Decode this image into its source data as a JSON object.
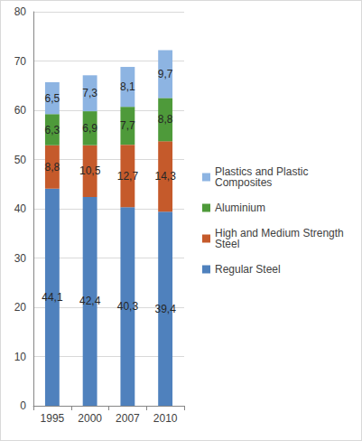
{
  "chart_data": {
    "type": "bar",
    "stacked": true,
    "data_labels": true,
    "grid": true,
    "legend": "right",
    "categories": [
      "1995",
      "2000",
      "2007",
      "2010"
    ],
    "ylim": [
      0,
      80
    ],
    "yticks": [
      0,
      10,
      20,
      30,
      40,
      50,
      60,
      70,
      80
    ],
    "series": [
      {
        "name": "Regular Steel",
        "color": "#4f81bd",
        "values": [
          44.1,
          42.4,
          40.3,
          39.4
        ],
        "value_labels": [
          "44,1",
          "42,4",
          "40,3",
          "39,4"
        ]
      },
      {
        "name": "High and Medium Strength Steel",
        "color": "#c55a2b",
        "values": [
          8.8,
          10.5,
          12.7,
          14.3
        ],
        "value_labels": [
          "8,8",
          "10,5",
          "12,7",
          "14,3"
        ]
      },
      {
        "name": "Aluminium",
        "color": "#4e9a3a",
        "values": [
          6.3,
          6.9,
          7.7,
          8.8
        ],
        "value_labels": [
          "6,3",
          "6,9",
          "7,7",
          "8,8"
        ]
      },
      {
        "name": "Plastics and Plastic Composites",
        "color": "#8db4e2",
        "values": [
          6.5,
          7.3,
          8.1,
          9.7
        ],
        "value_labels": [
          "6,5",
          "7,3",
          "8,1",
          "9,7"
        ]
      }
    ]
  }
}
